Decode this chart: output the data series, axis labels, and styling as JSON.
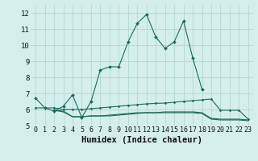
{
  "line1_x": [
    0,
    1,
    2,
    3,
    4,
    5,
    6,
    7,
    8,
    9,
    10,
    11,
    12,
    13,
    14,
    15,
    16,
    17,
    18
  ],
  "line1_y": [
    6.7,
    6.1,
    5.9,
    6.2,
    6.9,
    5.5,
    6.5,
    8.45,
    8.65,
    8.65,
    10.2,
    11.35,
    11.9,
    10.5,
    9.8,
    10.2,
    11.5,
    9.2,
    7.25
  ],
  "line2_x": [
    0,
    1,
    2,
    3,
    4,
    5,
    6,
    7,
    8,
    9,
    10,
    11,
    12,
    13,
    14,
    15,
    16,
    17,
    18,
    19,
    20,
    21,
    22,
    23
  ],
  "line2_y": [
    6.1,
    6.1,
    6.1,
    6.0,
    6.0,
    6.0,
    6.05,
    6.1,
    6.15,
    6.2,
    6.25,
    6.3,
    6.35,
    6.38,
    6.4,
    6.45,
    6.5,
    6.55,
    6.6,
    6.65,
    5.95,
    5.95,
    5.95,
    5.4
  ],
  "line3_x": [
    2,
    3,
    4,
    5,
    6,
    7,
    8,
    9,
    10,
    11,
    12,
    13,
    14,
    15,
    16,
    17,
    18,
    19,
    20,
    21,
    22,
    23
  ],
  "line3_y": [
    5.95,
    5.9,
    5.55,
    5.55,
    5.6,
    5.6,
    5.65,
    5.7,
    5.75,
    5.8,
    5.8,
    5.8,
    5.85,
    5.85,
    5.85,
    5.85,
    5.8,
    5.45,
    5.4,
    5.4,
    5.4,
    5.35
  ],
  "line4_x": [
    2,
    3,
    4,
    5,
    6,
    7,
    8,
    9,
    10,
    11,
    12,
    13,
    14,
    15,
    16,
    17,
    18,
    19,
    20,
    21,
    22,
    23
  ],
  "line4_y": [
    5.95,
    5.85,
    5.55,
    5.55,
    5.6,
    5.6,
    5.6,
    5.65,
    5.7,
    5.75,
    5.8,
    5.8,
    5.8,
    5.8,
    5.8,
    5.8,
    5.75,
    5.4,
    5.35,
    5.35,
    5.35,
    5.3
  ],
  "line1_markers_x": [
    0,
    1,
    2,
    3,
    4,
    5,
    6,
    7,
    8,
    9,
    10,
    11,
    12,
    13,
    14,
    15,
    16,
    17,
    18
  ],
  "line_color": "#1a6b5a",
  "bg_color": "#d4eeeb",
  "grid_color": "#aed4d0",
  "xlabel": "Humidex (Indice chaleur)",
  "xlim": [
    -0.5,
    23.5
  ],
  "ylim": [
    5.0,
    12.5
  ],
  "yticks": [
    5,
    6,
    7,
    8,
    9,
    10,
    11,
    12
  ],
  "xticks": [
    0,
    1,
    2,
    3,
    4,
    5,
    6,
    7,
    8,
    9,
    10,
    11,
    12,
    13,
    14,
    15,
    16,
    17,
    18,
    19,
    20,
    21,
    22,
    23
  ],
  "tick_fontsize": 6.0,
  "xlabel_fontsize": 7.5
}
